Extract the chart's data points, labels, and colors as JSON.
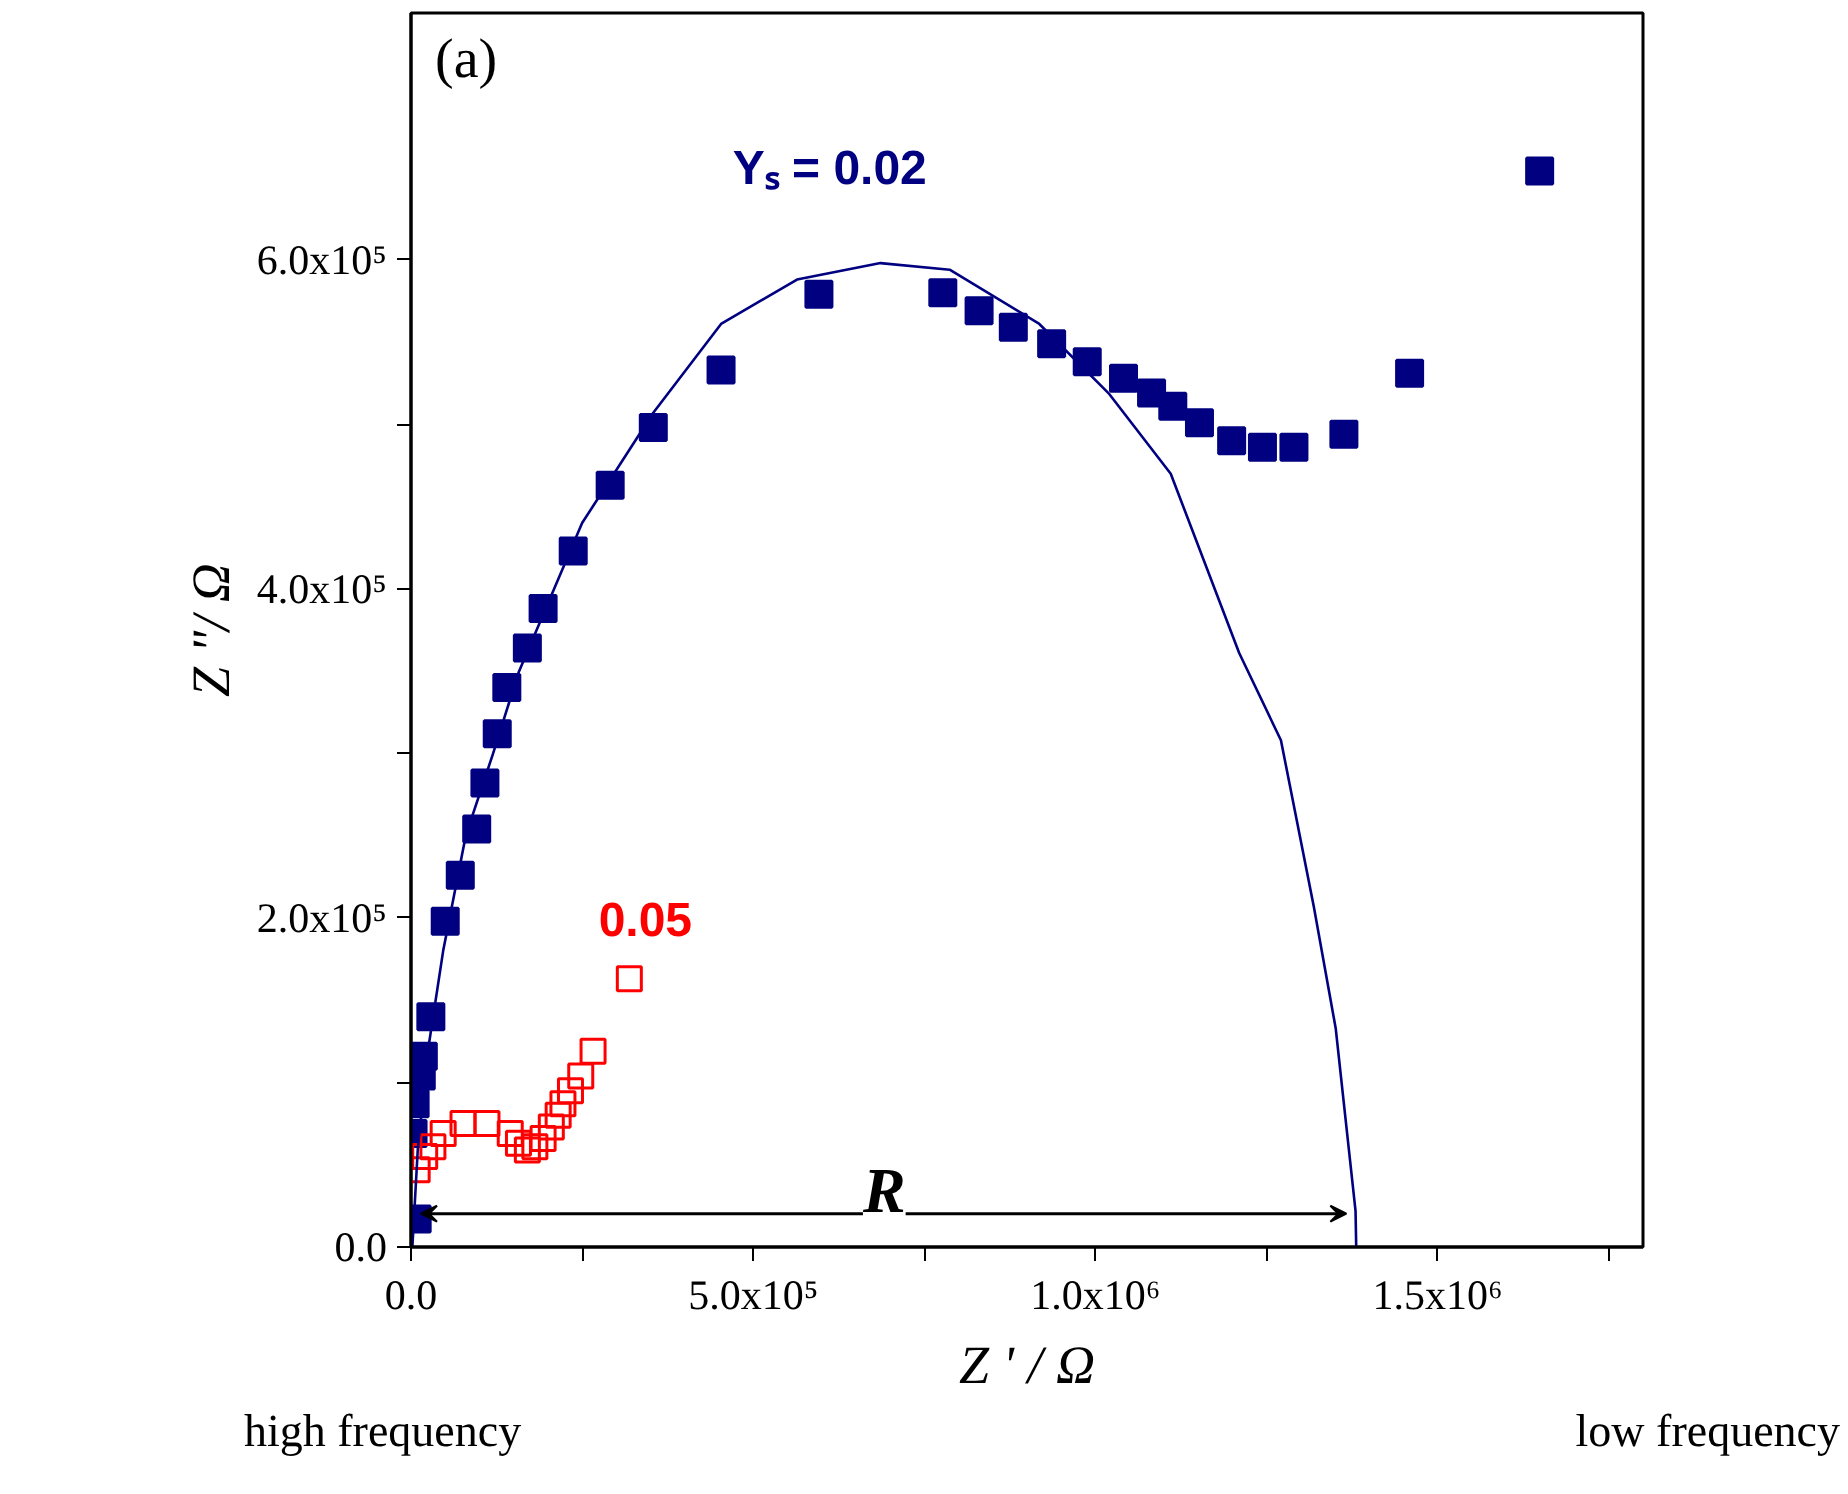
{
  "chart_data": {
    "type": "scatter",
    "xlabel": "Z ' / Ω",
    "ylabel": "Z \"/ Ω",
    "xlim": [
      0,
      1800000
    ],
    "ylim": [
      0,
      750000
    ],
    "xticks": [
      {
        "value": 0,
        "label": "0.0"
      },
      {
        "value": 250000,
        "label": null
      },
      {
        "value": 500000,
        "label": "5.0x10⁵"
      },
      {
        "value": 750000,
        "label": null
      },
      {
        "value": 1000000,
        "label": "1.0x10⁶"
      },
      {
        "value": 1250000,
        "label": null
      },
      {
        "value": 1500000,
        "label": "1.5x10⁶"
      },
      {
        "value": 1750000,
        "label": null
      }
    ],
    "yticks": [
      {
        "value": 0,
        "label": "0.0"
      },
      {
        "value": 100000,
        "label": null
      },
      {
        "value": 200000,
        "label": "2.0x10⁵"
      },
      {
        "value": 300000,
        "label": null
      },
      {
        "value": 400000,
        "label": "4.0x10⁵"
      },
      {
        "value": 500000,
        "label": null
      },
      {
        "value": 600000,
        "label": "6.0x10⁵"
      }
    ],
    "grid": false,
    "series": [
      {
        "name": "Yₛ = 0.02",
        "color": "#000080",
        "marker": "square",
        "x": [
          9000,
          3000,
          6000,
          15000,
          18000,
          29000,
          50000,
          72000,
          96000,
          108000,
          126000,
          140000,
          170000,
          193000,
          237000,
          291000,
          354000,
          453000,
          596000,
          777000,
          830000,
          880000,
          936000,
          988000,
          1041000,
          1082000,
          1113000,
          1152000,
          1199000,
          1244000,
          1290000,
          1363000,
          1459000,
          1649000
        ],
        "values": [
          17000,
          69000,
          87000,
          104000,
          116000,
          140000,
          198000,
          226000,
          254000,
          282000,
          312000,
          340000,
          364000,
          388000,
          423000,
          463000,
          498000,
          533000,
          579000,
          580000,
          569000,
          559000,
          549000,
          538000,
          528000,
          519000,
          511000,
          501000,
          490000,
          486000,
          486000,
          494000,
          531000,
          654000
        ]
      },
      {
        "name": "0.05",
        "color": "#ff0000",
        "marker": "square",
        "x": [
          9000,
          20000,
          32000,
          47000,
          76000,
          111000,
          145000,
          157000,
          170000,
          181000,
          193000,
          205000,
          215000,
          222000,
          233000,
          248000,
          266000,
          319000
        ],
        "values": [
          47000,
          55000,
          61000,
          69000,
          75000,
          75000,
          69000,
          63000,
          59000,
          61000,
          66000,
          73000,
          80000,
          87000,
          95000,
          104000,
          119000,
          163000
        ]
      },
      {
        "type": "line",
        "color": "#000080",
        "x": [
          2000,
          10000,
          25000,
          47000,
          80000,
          120000,
          157000,
          250000,
          354000,
          453000,
          564000,
          686000,
          787000,
          918000,
          1019000,
          1110000,
          1210000,
          1271000,
          1319000,
          1351000,
          1380000,
          1381000
        ],
        "values": [
          0,
          60000,
          120000,
          180000,
          250000,
          300000,
          349000,
          440000,
          507000,
          561000,
          588000,
          598000,
          594000,
          561000,
          519000,
          470000,
          361000,
          308000,
          207000,
          133000,
          22000,
          0
        ]
      }
    ],
    "annotations": [
      "R",
      "(a)",
      "high frequency",
      "low frequency"
    ]
  }
}
